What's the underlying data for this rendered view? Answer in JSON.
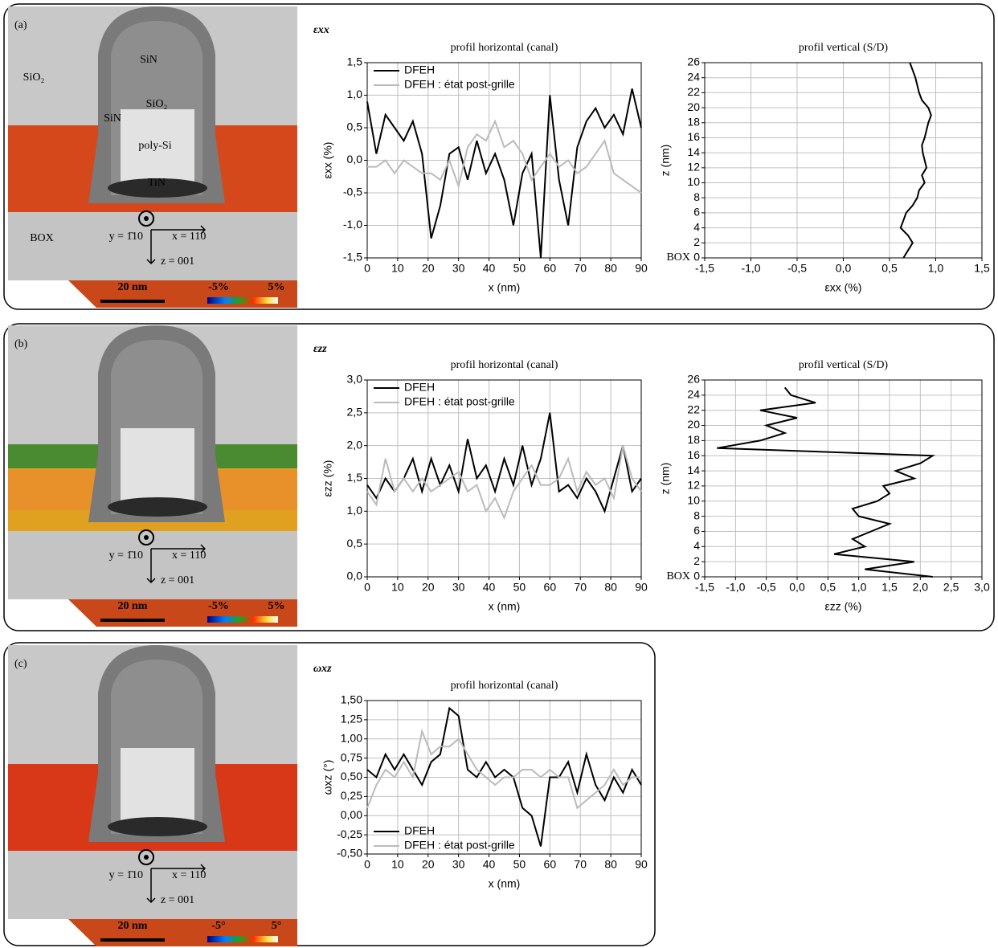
{
  "panels": [
    {
      "label": "(a)",
      "symbol": "εxx",
      "image": {
        "materials": [
          "SiN",
          "SiO₂",
          "SiO₂",
          "SiN",
          "poly-Si",
          "TiN",
          "BOX"
        ],
        "axes": [
          "y = 1̄10",
          "x = 110",
          "z = 001"
        ],
        "scale": "20 nm",
        "colorbar": [
          "-5%",
          "5%"
        ]
      }
    },
    {
      "label": "(b)",
      "symbol": "εzz",
      "image": {
        "axes": [
          "y = 1̄10",
          "x = 110",
          "z = 001"
        ],
        "scale": "20 nm",
        "colorbar": [
          "-5%",
          "5%"
        ]
      }
    },
    {
      "label": "(c)",
      "symbol": "ωxz",
      "image": {
        "axes": [
          "y = 1̄10",
          "x = 110",
          "z = 001"
        ],
        "scale": "20 nm",
        "colorbar": [
          "-5°",
          "5°"
        ]
      }
    }
  ],
  "chart_data": [
    {
      "type": "line",
      "title": "profil horizontal (canal)",
      "xlabel": "x (nm)",
      "ylabel": "εxx (%)",
      "x": [
        0,
        3,
        6,
        9,
        12,
        15,
        18,
        21,
        24,
        27,
        30,
        33,
        36,
        39,
        42,
        45,
        48,
        51,
        54,
        57,
        60,
        63,
        66,
        69,
        72,
        75,
        78,
        81,
        84,
        87,
        90
      ],
      "series": [
        {
          "name": "DFEH",
          "color": "#000000",
          "values": [
            0.9,
            0.1,
            0.7,
            0.5,
            0.3,
            0.6,
            0.1,
            -1.2,
            -0.7,
            0.1,
            0.2,
            -0.3,
            0.3,
            -0.2,
            0.1,
            -0.3,
            -1.0,
            -0.2,
            0.1,
            -1.5,
            1.0,
            -0.3,
            -1.0,
            0.2,
            0.6,
            0.8,
            0.5,
            0.7,
            0.4,
            1.1,
            0.5
          ]
        },
        {
          "name": "DFEH : état post-grille",
          "color": "#bbbbbb",
          "values": [
            -0.1,
            -0.1,
            0.0,
            -0.2,
            0.0,
            -0.1,
            -0.2,
            -0.2,
            -0.3,
            0.0,
            -0.4,
            0.2,
            0.4,
            0.3,
            0.6,
            0.2,
            0.3,
            0.1,
            -0.3,
            -0.1,
            0.1,
            -0.1,
            0.0,
            -0.2,
            -0.1,
            0.1,
            0.3,
            -0.2,
            -0.3,
            -0.4,
            -0.5
          ]
        }
      ],
      "xlim": [
        0,
        90
      ],
      "xticks": [
        0,
        10,
        20,
        30,
        40,
        50,
        60,
        70,
        80,
        90
      ],
      "ylim": [
        -1.5,
        1.5
      ],
      "yticks": [
        {
          "value": -1.5,
          "label": "-1,5"
        },
        {
          "value": -1,
          "label": "-1,0"
        },
        {
          "value": -0.5,
          "label": "-0,5"
        },
        {
          "value": 0,
          "label": "0,0"
        },
        {
          "value": 0.5,
          "label": "0,5"
        },
        {
          "value": 1,
          "label": "1,0"
        },
        {
          "value": 1.5,
          "label": "1,5"
        }
      ],
      "grid": true,
      "legend": "upper left"
    },
    {
      "type": "line",
      "title": "profil vertical (S/D)",
      "xlabel": "εxx (%)",
      "ylabel": "z (nm)",
      "annotation": "BOX",
      "y": [
        0,
        1,
        2,
        3,
        4,
        5,
        6,
        7,
        8,
        9,
        10,
        11,
        12,
        13,
        14,
        15,
        16,
        17,
        18,
        19,
        20,
        21,
        22,
        23,
        24,
        25,
        26
      ],
      "series": [
        {
          "color": "#000000",
          "values": [
            0.65,
            0.7,
            0.75,
            0.7,
            0.62,
            0.65,
            0.68,
            0.75,
            0.8,
            0.82,
            0.88,
            0.85,
            0.9,
            0.88,
            0.86,
            0.85,
            0.88,
            0.9,
            0.92,
            0.95,
            0.92,
            0.85,
            0.82,
            0.8,
            0.78,
            0.75,
            0.72
          ]
        }
      ],
      "xlim": [
        -1.5,
        1.5
      ],
      "xticks": [
        {
          "value": -1.5,
          "label": "-1,5"
        },
        {
          "value": -1,
          "label": "-1,0"
        },
        {
          "value": -0.5,
          "label": "-0,5"
        },
        {
          "value": 0,
          "label": "0,0"
        },
        {
          "value": 0.5,
          "label": "0,5"
        },
        {
          "value": 1,
          "label": "1,0"
        },
        {
          "value": 1.5,
          "label": "1,5"
        }
      ],
      "ylim": [
        0,
        26
      ],
      "yticks": [
        0,
        2,
        4,
        6,
        8,
        10,
        12,
        14,
        16,
        18,
        20,
        22,
        24,
        26
      ],
      "grid": true
    },
    {
      "type": "line",
      "title": "profil horizontal (canal)",
      "xlabel": "x (nm)",
      "ylabel": "εzz (%)",
      "x": [
        0,
        3,
        6,
        9,
        12,
        15,
        18,
        21,
        24,
        27,
        30,
        33,
        36,
        39,
        42,
        45,
        48,
        51,
        54,
        57,
        60,
        63,
        66,
        69,
        72,
        75,
        78,
        81,
        84,
        87,
        90
      ],
      "series": [
        {
          "name": "DFEH",
          "color": "#000000",
          "values": [
            1.4,
            1.2,
            1.5,
            1.3,
            1.5,
            1.8,
            1.3,
            1.8,
            1.4,
            1.7,
            1.3,
            2.1,
            1.5,
            1.7,
            1.3,
            1.8,
            1.4,
            2.0,
            1.4,
            1.8,
            2.5,
            1.3,
            1.4,
            1.2,
            1.5,
            1.3,
            1.0,
            1.5,
            2.0,
            1.3,
            1.5
          ]
        },
        {
          "name": "DFEH : état post-grille",
          "color": "#bbbbbb",
          "values": [
            1.3,
            1.1,
            1.8,
            1.3,
            1.5,
            1.3,
            1.5,
            1.3,
            1.4,
            1.5,
            1.6,
            1.3,
            1.4,
            1.0,
            1.2,
            0.9,
            1.3,
            1.5,
            1.7,
            1.4,
            1.4,
            1.5,
            1.8,
            1.3,
            1.6,
            1.4,
            1.5,
            1.2,
            2.0,
            1.5,
            1.3
          ]
        }
      ],
      "xlim": [
        0,
        90
      ],
      "xticks": [
        0,
        10,
        20,
        30,
        40,
        50,
        60,
        70,
        80,
        90
      ],
      "ylim": [
        0,
        3
      ],
      "yticks": [
        {
          "value": 0,
          "label": "0,0"
        },
        {
          "value": 0.5,
          "label": "0,5"
        },
        {
          "value": 1,
          "label": "1,0"
        },
        {
          "value": 1.5,
          "label": "1,5"
        },
        {
          "value": 2,
          "label": "2,0"
        },
        {
          "value": 2.5,
          "label": "2,5"
        },
        {
          "value": 3,
          "label": "3,0"
        }
      ],
      "grid": true,
      "legend": "upper left"
    },
    {
      "type": "line",
      "title": "profil vertical (S/D)",
      "xlabel": "εzz (%)",
      "ylabel": "z (nm)",
      "annotation": "BOX",
      "y": [
        0,
        1,
        2,
        3,
        4,
        5,
        6,
        7,
        8,
        9,
        10,
        11,
        12,
        13,
        14,
        15,
        16,
        17,
        18,
        19,
        20,
        21,
        22,
        23,
        24,
        25
      ],
      "series": [
        {
          "color": "#000000",
          "values": [
            2.2,
            1.1,
            1.9,
            0.6,
            1.1,
            0.9,
            1.2,
            1.5,
            1.0,
            0.9,
            1.3,
            1.5,
            1.4,
            1.9,
            1.6,
            2.0,
            2.2,
            -1.3,
            -0.6,
            -0.2,
            -0.5,
            0.0,
            -0.6,
            0.3,
            -0.1,
            -0.2
          ]
        }
      ],
      "xlim": [
        -1.5,
        3
      ],
      "xticks": [
        {
          "value": -1.5,
          "label": "-1,5"
        },
        {
          "value": -1,
          "label": "-1,0"
        },
        {
          "value": -0.5,
          "label": "-0,5"
        },
        {
          "value": 0,
          "label": "0,0"
        },
        {
          "value": 0.5,
          "label": "0,5"
        },
        {
          "value": 1,
          "label": "1,0"
        },
        {
          "value": 1.5,
          "label": "1,5"
        },
        {
          "value": 2,
          "label": "2,0"
        },
        {
          "value": 2.5,
          "label": "2,5"
        },
        {
          "value": 3,
          "label": "3,0"
        }
      ],
      "ylim": [
        0,
        26
      ],
      "yticks": [
        0,
        2,
        4,
        6,
        8,
        10,
        12,
        14,
        16,
        18,
        20,
        22,
        24,
        26
      ],
      "grid": true
    },
    {
      "type": "line",
      "title": "profil horizontal (canal)",
      "xlabel": "x (nm)",
      "ylabel": "ωxz (°)",
      "x": [
        0,
        3,
        6,
        9,
        12,
        15,
        18,
        21,
        24,
        27,
        30,
        33,
        36,
        39,
        42,
        45,
        48,
        51,
        54,
        57,
        60,
        63,
        66,
        69,
        72,
        75,
        78,
        81,
        84,
        87,
        90
      ],
      "series": [
        {
          "name": "DFEH",
          "color": "#000000",
          "values": [
            0.6,
            0.5,
            0.8,
            0.6,
            0.8,
            0.6,
            0.4,
            0.7,
            0.8,
            1.4,
            1.3,
            0.6,
            0.5,
            0.7,
            0.5,
            0.6,
            0.5,
            0.1,
            0.0,
            -0.4,
            0.5,
            0.5,
            0.7,
            0.3,
            0.8,
            0.4,
            0.2,
            0.5,
            0.3,
            0.6,
            0.4
          ]
        },
        {
          "name": "DFEH : état post-grille",
          "color": "#bbbbbb",
          "values": [
            0.1,
            0.4,
            0.6,
            0.5,
            0.7,
            0.5,
            1.1,
            0.8,
            0.9,
            0.9,
            1.0,
            0.8,
            0.6,
            0.5,
            0.4,
            0.5,
            0.5,
            0.6,
            0.6,
            0.5,
            0.6,
            0.5,
            0.5,
            0.1,
            0.2,
            0.3,
            0.4,
            0.6,
            0.4,
            0.5,
            0.5
          ]
        }
      ],
      "xlim": [
        0,
        90
      ],
      "xticks": [
        0,
        10,
        20,
        30,
        40,
        50,
        60,
        70,
        80,
        90
      ],
      "ylim": [
        -0.5,
        1.5
      ],
      "yticks": [
        {
          "value": -0.5,
          "label": "-0,50"
        },
        {
          "value": -0.25,
          "label": "-0,25"
        },
        {
          "value": 0,
          "label": "0,00"
        },
        {
          "value": 0.25,
          "label": "0,25"
        },
        {
          "value": 0.5,
          "label": "0,50"
        },
        {
          "value": 0.75,
          "label": "0,75"
        },
        {
          "value": 1,
          "label": "1,00"
        },
        {
          "value": 1.25,
          "label": "1,25"
        },
        {
          "value": 1.5,
          "label": "1,50"
        }
      ],
      "grid": true,
      "legend": "lower left"
    }
  ]
}
